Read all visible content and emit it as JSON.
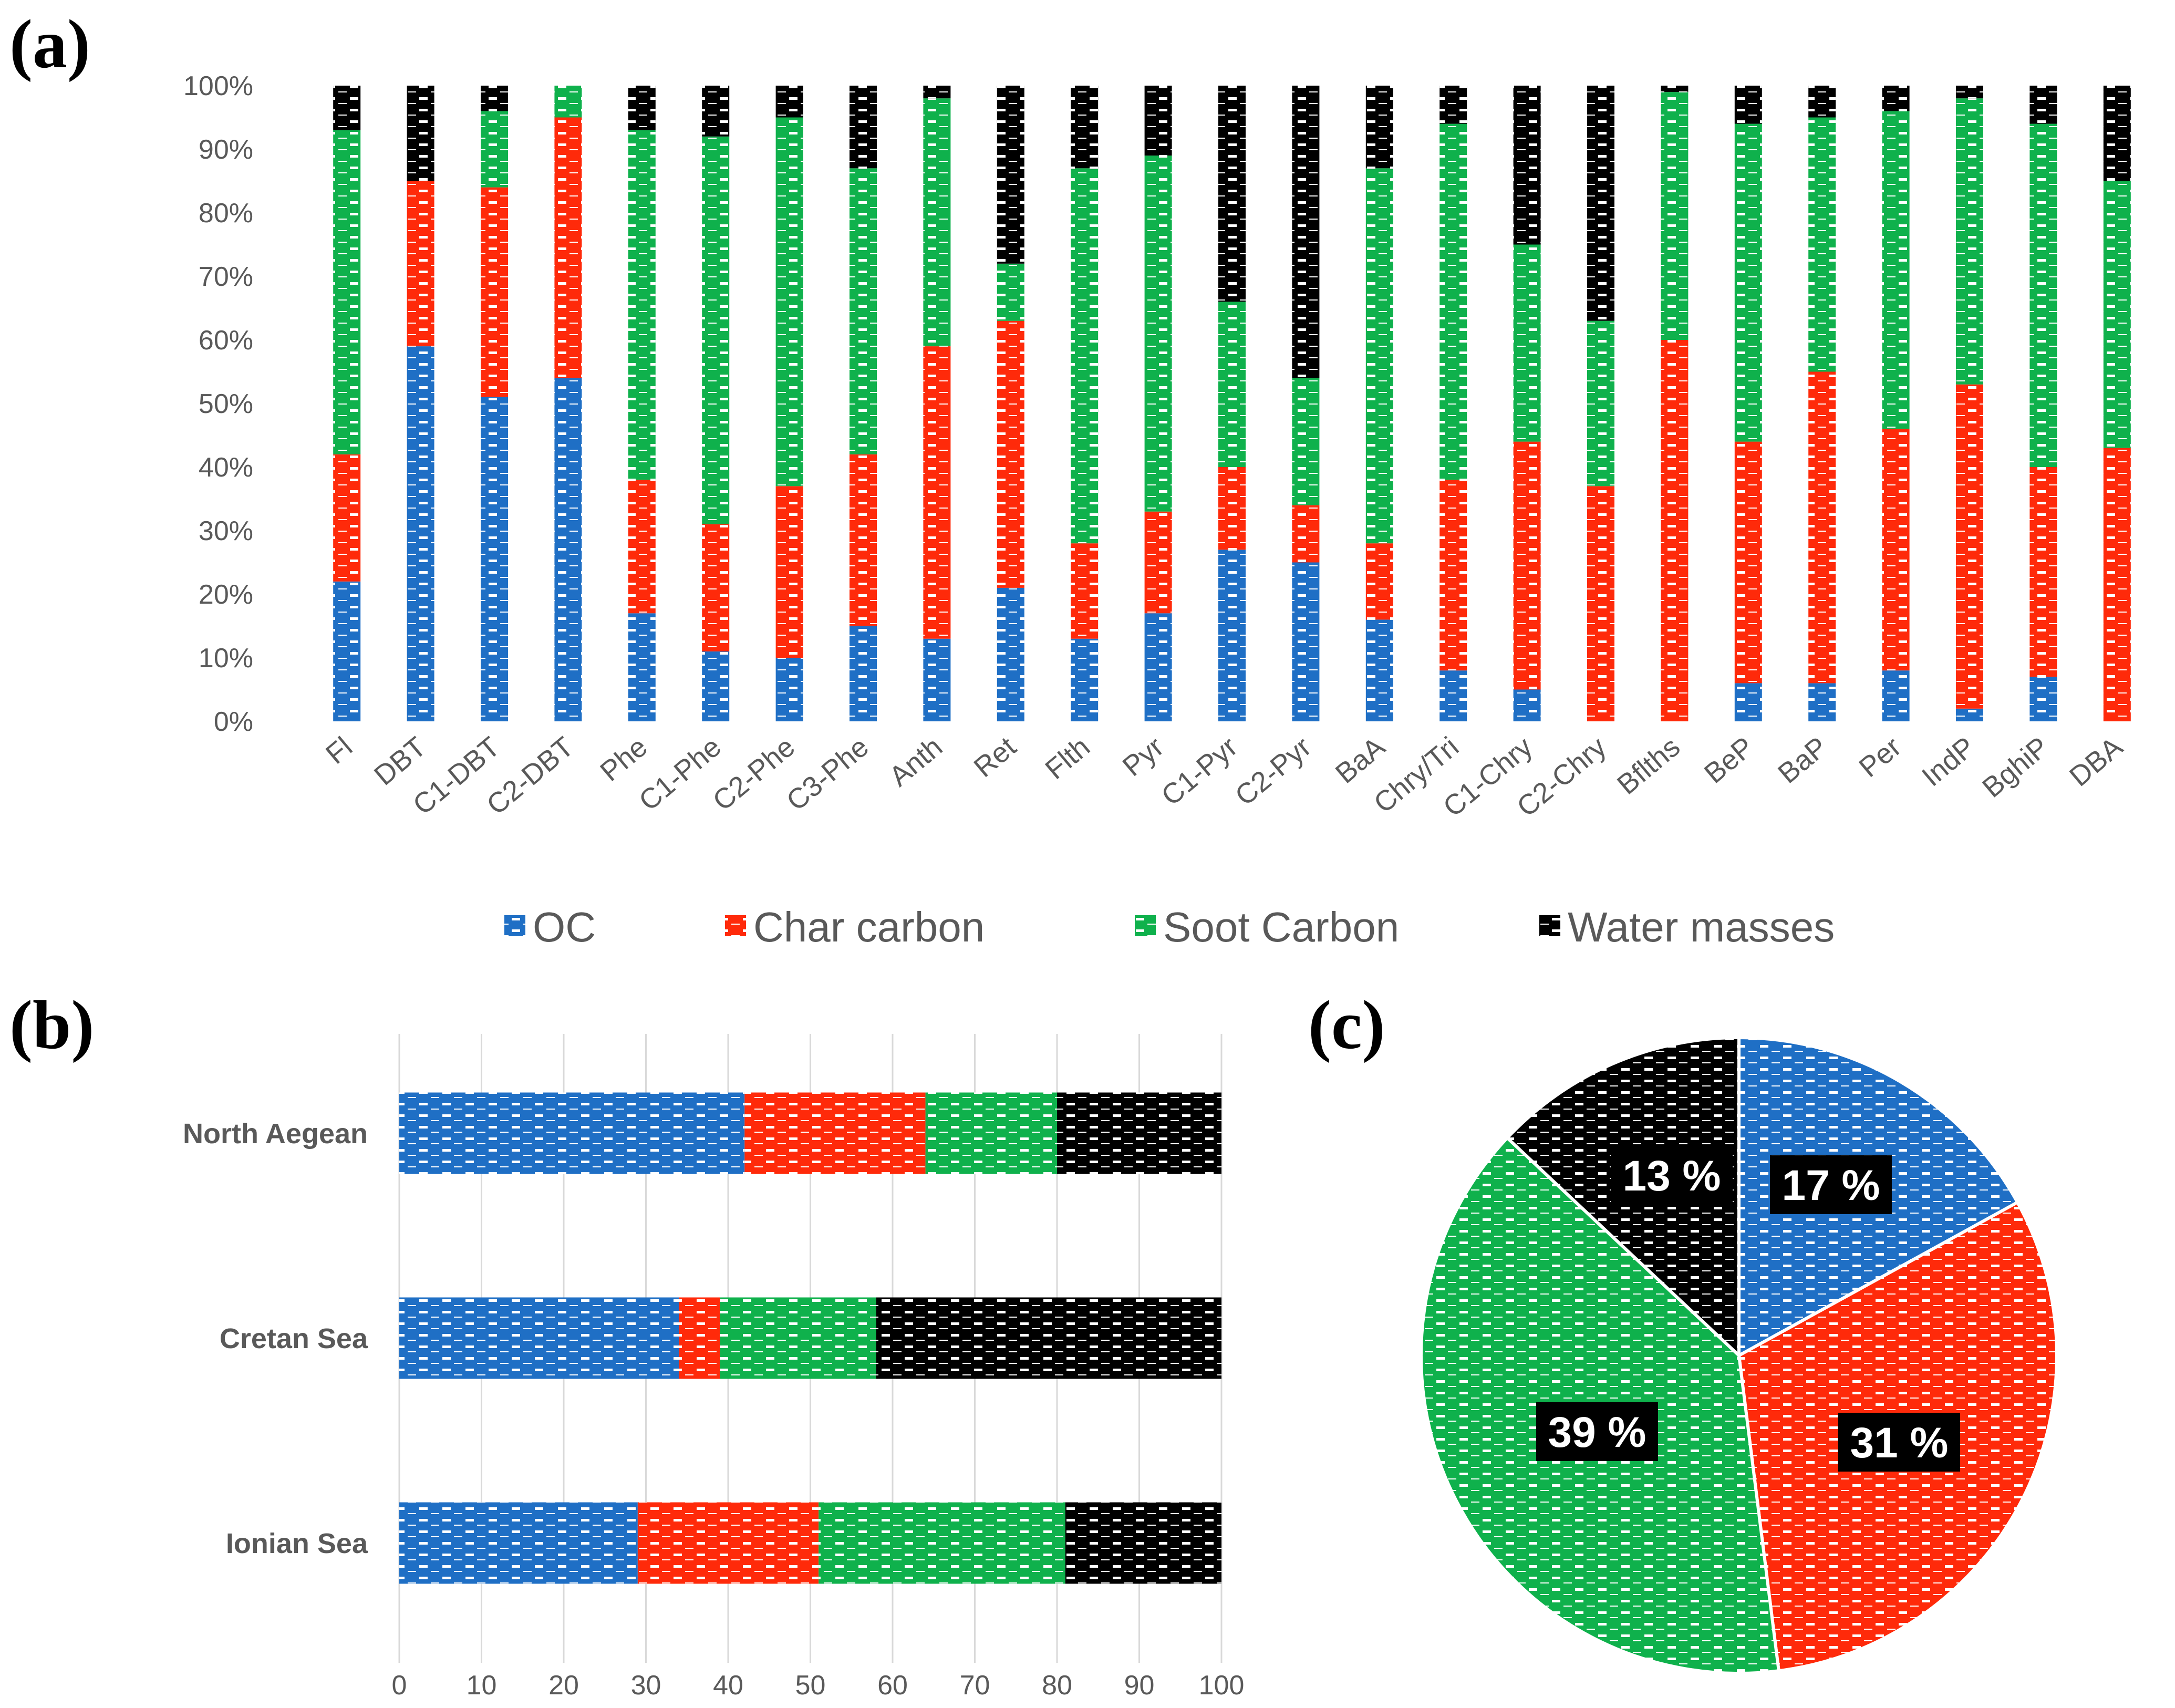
{
  "panels": {
    "a": "(a)",
    "b": "(b)",
    "c": "(c)"
  },
  "colors": {
    "OC": "#1f6fc5",
    "Char carbon": "#ff2a0a",
    "Soot Carbon": "#0fb14c",
    "Water masses": "#000000"
  },
  "chart_data": [
    {
      "type": "bar",
      "stacked": true,
      "orientation": "vertical",
      "title": "",
      "ylim": [
        0,
        100
      ],
      "yticks": [
        "0%",
        "10%",
        "20%",
        "30%",
        "40%",
        "50%",
        "60%",
        "70%",
        "80%",
        "90%",
        "100%"
      ],
      "categories": [
        "Fl",
        "DBT",
        "C1-DBT",
        "C2-DBT",
        "Phe",
        "C1-Phe",
        "C2-Phe",
        "C3-Phe",
        "Anth",
        "Ret",
        "Flth",
        "Pyr",
        "C1-Pyr",
        "C2-Pyr",
        "BaA",
        "Chry/Tri",
        "C1-Chry",
        "C2-Chry",
        "Bflths",
        "BeP",
        "BaP",
        "Per",
        "IndP",
        "BghiP",
        "DBA"
      ],
      "series": [
        {
          "name": "OC",
          "values": [
            22,
            59,
            51,
            54,
            17,
            11,
            10,
            15,
            13,
            21,
            13,
            17,
            27,
            25,
            16,
            8,
            5,
            0,
            0,
            6,
            6,
            8,
            2,
            7,
            0
          ]
        },
        {
          "name": "Char carbon",
          "values": [
            20,
            26,
            33,
            41,
            21,
            20,
            27,
            27,
            46,
            42,
            15,
            16,
            13,
            9,
            12,
            30,
            39,
            37,
            60,
            38,
            49,
            38,
            51,
            33,
            43
          ]
        },
        {
          "name": "Soot Carbon",
          "values": [
            51,
            0,
            12,
            5,
            55,
            61,
            58,
            45,
            39,
            9,
            59,
            56,
            26,
            20,
            59,
            56,
            31,
            26,
            39,
            50,
            40,
            50,
            45,
            54,
            42
          ]
        },
        {
          "name": "Water masses",
          "values": [
            7,
            15,
            4,
            0,
            7,
            8,
            5,
            13,
            2,
            28,
            13,
            11,
            34,
            46,
            13,
            6,
            25,
            37,
            1,
            6,
            5,
            4,
            2,
            6,
            15
          ]
        }
      ],
      "legend": [
        "OC",
        "Char carbon",
        "Soot Carbon",
        "Water masses"
      ],
      "legend_position": "bottom"
    },
    {
      "type": "bar",
      "stacked": true,
      "orientation": "horizontal",
      "categories": [
        "North Aegean",
        "Cretan Sea",
        "Ionian Sea"
      ],
      "xlim": [
        0,
        100
      ],
      "xticks": [
        "0",
        "10",
        "20",
        "30",
        "40",
        "50",
        "60",
        "70",
        "80",
        "90",
        "100"
      ],
      "grid": true,
      "series": [
        {
          "name": "OC",
          "values": [
            42,
            34,
            29
          ]
        },
        {
          "name": "Char carbon",
          "values": [
            22,
            5,
            22
          ]
        },
        {
          "name": "Soot Carbon",
          "values": [
            16,
            19,
            30
          ]
        },
        {
          "name": "Water masses",
          "values": [
            20,
            42,
            19
          ]
        }
      ]
    },
    {
      "type": "pie",
      "slices": [
        {
          "name": "OC",
          "value": 17,
          "label": "17 %"
        },
        {
          "name": "Char carbon",
          "value": 31,
          "label": "31 %"
        },
        {
          "name": "Soot Carbon",
          "value": 39,
          "label": "39 %"
        },
        {
          "name": "Water masses",
          "value": 13,
          "label": "13 %"
        }
      ]
    }
  ]
}
